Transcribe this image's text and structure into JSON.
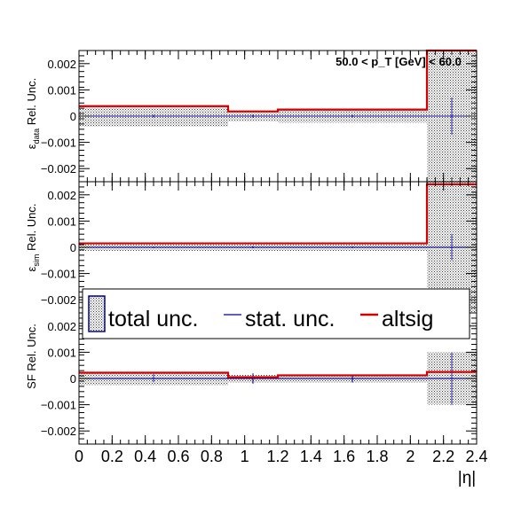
{
  "chart_data": [
    {
      "type": "step",
      "panel": "top",
      "annotation": "50.0 < p_T [GeV] < 60.0",
      "ylabel_main": "Rel. Unc.",
      "ylabel_symbol": "ε",
      "ylabel_sub": "data",
      "ylim": [
        -0.0025,
        0.0025
      ],
      "yticks": [
        0.002,
        0.001,
        0,
        -0.001,
        -0.002
      ],
      "ytick_labels": [
        "0.002",
        "0.001",
        "0",
        "−0.001",
        "−0.002"
      ],
      "bins": [
        [
          0,
          0.9
        ],
        [
          0.9,
          1.2
        ],
        [
          1.2,
          2.1
        ],
        [
          2.1,
          2.4
        ]
      ],
      "series": [
        {
          "name": "total unc.",
          "style": "band",
          "color": "#000000",
          "values": [
            0.0004,
            0.0002,
            0.00025,
            0.0025
          ]
        },
        {
          "name": "stat. unc.",
          "style": "errorbar",
          "color": "#00009c",
          "centers": [
            0.45,
            1.05,
            1.65,
            2.25
          ],
          "values": [
            5e-05,
            6e-05,
            5e-05,
            0.0007
          ]
        },
        {
          "name": "altsig",
          "style": "line",
          "color": "#d40000",
          "values": [
            0.00038,
            0.00018,
            0.00025,
            0.0025
          ]
        }
      ]
    },
    {
      "type": "step",
      "panel": "middle",
      "ylabel_main": "Rel. Unc.",
      "ylabel_symbol": "ε",
      "ylabel_sub": "sim",
      "ylim": [
        -0.0025,
        0.0025
      ],
      "yticks": [
        0.002,
        0.001,
        0,
        -0.001,
        -0.002
      ],
      "ytick_labels": [
        "0.002",
        "0.001",
        "0",
        "−0.001",
        "−0.002"
      ],
      "bins": [
        [
          0,
          0.9
        ],
        [
          0.9,
          1.2
        ],
        [
          1.2,
          2.1
        ],
        [
          2.1,
          2.4
        ]
      ],
      "series": [
        {
          "name": "total unc.",
          "style": "band",
          "color": "#000000",
          "values": [
            0.00015,
            0.00015,
            0.00015,
            0.0025
          ]
        },
        {
          "name": "stat. unc.",
          "style": "errorbar",
          "color": "#00009c",
          "centers": [
            0.45,
            1.05,
            1.65,
            2.25
          ],
          "values": [
            3e-05,
            4e-05,
            3e-05,
            0.0005
          ]
        },
        {
          "name": "altsig",
          "style": "line",
          "color": "#d40000",
          "values": [
            0.00015,
            0.00015,
            0.00015,
            0.0024
          ]
        }
      ]
    },
    {
      "type": "step",
      "panel": "bottom",
      "ylabel_main": "SF Rel. Unc.",
      "ylim": [
        -0.0025,
        0.0025
      ],
      "yticks": [
        0.002,
        0.001,
        0,
        -0.001,
        -0.002
      ],
      "ytick_labels": [
        "0.002",
        "0.001",
        "0",
        "−0.001",
        "−0.002"
      ],
      "xlabel": "|η|",
      "xlim": [
        0,
        2.4
      ],
      "xticks": [
        0,
        0.2,
        0.4,
        0.6,
        0.8,
        1,
        1.2,
        1.4,
        1.6,
        1.8,
        2,
        2.2,
        2.4
      ],
      "xtick_labels": [
        "0",
        "0.2",
        "0.4",
        "0.6",
        "0.8",
        "1",
        "1.2",
        "1.4",
        "1.6",
        "1.8",
        "2",
        "2.2",
        "2.4"
      ],
      "bins": [
        [
          0,
          0.9
        ],
        [
          0.9,
          1.2
        ],
        [
          1.2,
          2.1
        ],
        [
          2.1,
          2.4
        ]
      ],
      "series": [
        {
          "name": "total unc.",
          "style": "band",
          "color": "#000000",
          "values": [
            0.00025,
            0.00015,
            0.00015,
            0.001
          ]
        },
        {
          "name": "stat. unc.",
          "style": "errorbar",
          "color": "#00009c",
          "centers": [
            0.45,
            1.05,
            1.65,
            2.25
          ],
          "values": [
            0.00015,
            0.0002,
            0.00015,
            0.001
          ]
        },
        {
          "name": "altsig",
          "style": "line",
          "color": "#d40000",
          "values": [
            0.00022,
            5e-05,
            0.00012,
            0.00025
          ]
        }
      ]
    }
  ],
  "legend": {
    "placement": "middle-left",
    "entries": [
      {
        "label": "total unc.",
        "icon": "hatched-box-icon"
      },
      {
        "label": "stat. unc.",
        "icon": "blue-line-icon"
      },
      {
        "label": "altsig",
        "icon": "red-line-icon"
      }
    ]
  }
}
